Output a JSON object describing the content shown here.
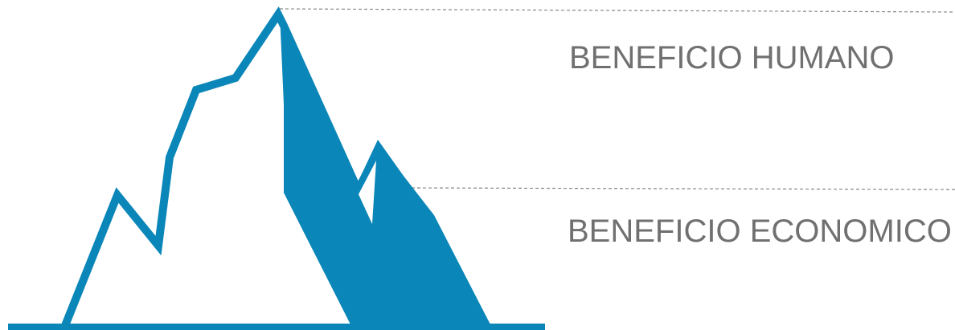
{
  "labels": {
    "top": "BENEFICIO HUMANO",
    "bottom": "BENEFICIO ECONOMICO"
  },
  "colors": {
    "mountain": "#0a86b8",
    "guide_line": "#888888",
    "label_text": "#707070",
    "background": "#ffffff"
  },
  "icons": {
    "mountain": "mountain-icon"
  }
}
